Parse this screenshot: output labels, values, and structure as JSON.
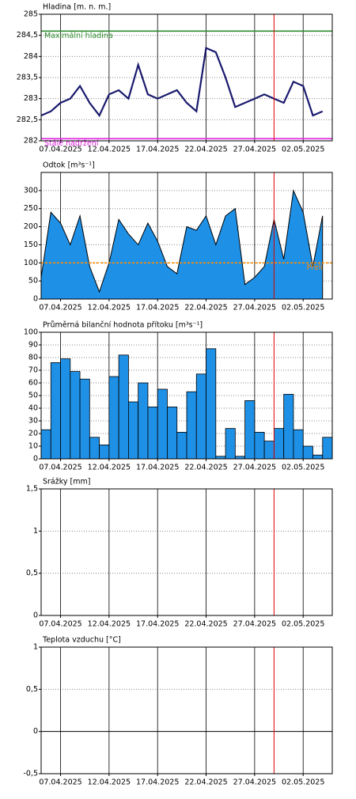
{
  "chart_data": [
    {
      "type": "line",
      "title": "Hladina [m. n. m.]",
      "x": [
        "05.04.2025",
        "06.04.2025",
        "07.04.2025",
        "08.04.2025",
        "09.04.2025",
        "10.04.2025",
        "11.04.2025",
        "12.04.2025",
        "13.04.2025",
        "14.04.2025",
        "15.04.2025",
        "16.04.2025",
        "17.04.2025",
        "18.04.2025",
        "19.04.2025",
        "20.04.2025",
        "21.04.2025",
        "22.04.2025",
        "23.04.2025",
        "24.04.2025",
        "25.04.2025",
        "26.04.2025",
        "27.04.2025",
        "28.04.2025",
        "29.04.2025",
        "30.04.2025",
        "01.05.2025",
        "02.05.2025",
        "03.05.2025",
        "04.05.2025"
      ],
      "series": [
        {
          "color": "#1a1a6e",
          "values": [
            282.6,
            282.7,
            282.9,
            283.0,
            283.3,
            282.9,
            282.6,
            283.1,
            283.2,
            283.0,
            283.8,
            283.1,
            283.0,
            283.1,
            283.2,
            282.9,
            282.7,
            284.2,
            284.1,
            283.5,
            282.8,
            282.9,
            283.0,
            283.1,
            283.0,
            282.9,
            283.4,
            283.3,
            282.6,
            282.7
          ]
        }
      ],
      "references": [
        {
          "label": "Maximální hladina",
          "value": 284.6,
          "color": "#2e8b2e"
        },
        {
          "label": "Stálé nadržení",
          "value": 282.05,
          "color": "#e020e0"
        }
      ],
      "xlim": [
        "05.04.2025",
        "05.05.2025"
      ],
      "xticks": [
        "07.04.2025",
        "12.04.2025",
        "17.04.2025",
        "22.04.2025",
        "27.04.2025",
        "02.05.2025"
      ],
      "ylim": [
        282,
        285
      ],
      "yticks": [
        282,
        {
          "value": 282.5,
          "label": "282,5"
        },
        283,
        {
          "value": 283.5,
          "label": "283,5"
        },
        284,
        {
          "value": 284.5,
          "label": "284,5"
        },
        285
      ],
      "cursor": "29.04.2025",
      "grid": true
    },
    {
      "type": "area",
      "title": "Odtok [m³s⁻¹]",
      "x": [
        "05.04.2025",
        "06.04.2025",
        "07.04.2025",
        "08.04.2025",
        "09.04.2025",
        "10.04.2025",
        "11.04.2025",
        "12.04.2025",
        "13.04.2025",
        "14.04.2025",
        "15.04.2025",
        "16.04.2025",
        "17.04.2025",
        "18.04.2025",
        "19.04.2025",
        "20.04.2025",
        "21.04.2025",
        "22.04.2025",
        "23.04.2025",
        "24.04.2025",
        "25.04.2025",
        "26.04.2025",
        "27.04.2025",
        "28.04.2025",
        "29.04.2025",
        "30.04.2025",
        "01.05.2025",
        "02.05.2025",
        "03.05.2025",
        "04.05.2025"
      ],
      "series": [
        {
          "color": "#1e90e6",
          "values": [
            60,
            240,
            210,
            150,
            230,
            90,
            20,
            100,
            220,
            180,
            150,
            210,
            160,
            90,
            70,
            200,
            190,
            230,
            150,
            230,
            250,
            40,
            60,
            90,
            220,
            110,
            300,
            240,
            90,
            230
          ]
        }
      ],
      "references": [
        {
          "label": "Přeli",
          "value": 100,
          "color": "#ff8c00"
        }
      ],
      "xlim": [
        "05.04.2025",
        "05.05.2025"
      ],
      "xticks": [
        "07.04.2025",
        "12.04.2025",
        "17.04.2025",
        "22.04.2025",
        "27.04.2025",
        "02.05.2025"
      ],
      "ylim": [
        0,
        350
      ],
      "yticks": [
        0,
        50,
        100,
        150,
        200,
        250,
        300
      ],
      "cursor": "29.04.2025",
      "grid": true
    },
    {
      "type": "bar",
      "title": "Průměrná bilanční hodnota přítoku   [m³s⁻¹]",
      "x": [
        "05.04.2025",
        "06.04.2025",
        "07.04.2025",
        "08.04.2025",
        "09.04.2025",
        "10.04.2025",
        "11.04.2025",
        "12.04.2025",
        "13.04.2025",
        "14.04.2025",
        "15.04.2025",
        "16.04.2025",
        "17.04.2025",
        "18.04.2025",
        "19.04.2025",
        "20.04.2025",
        "21.04.2025",
        "22.04.2025",
        "23.04.2025",
        "24.04.2025",
        "25.04.2025",
        "26.04.2025",
        "27.04.2025",
        "28.04.2025",
        "29.04.2025",
        "30.04.2025",
        "01.05.2025",
        "02.05.2025",
        "03.05.2025",
        "04.05.2025"
      ],
      "series": [
        {
          "color": "#1e90e6",
          "values": [
            23,
            76,
            79,
            69,
            63,
            17,
            11,
            65,
            82,
            45,
            60,
            41,
            55,
            41,
            21,
            53,
            67,
            87,
            2,
            24,
            2,
            46,
            21,
            14,
            24,
            51,
            23,
            10,
            3,
            17
          ]
        }
      ],
      "xlim": [
        "05.04.2025",
        "05.05.2025"
      ],
      "xticks": [
        "07.04.2025",
        "12.04.2025",
        "17.04.2025",
        "22.04.2025",
        "27.04.2025",
        "02.05.2025"
      ],
      "ylim": [
        0,
        100
      ],
      "yticks": [
        0,
        10,
        20,
        30,
        40,
        50,
        60,
        70,
        80,
        90,
        100
      ],
      "cursor": "29.04.2025",
      "grid": true
    },
    {
      "type": "bar",
      "title": "Srážky [mm]",
      "series": [],
      "xlim": [
        "05.04.2025",
        "05.05.2025"
      ],
      "xticks": [
        "07.04.2025",
        "12.04.2025",
        "17.04.2025",
        "22.04.2025",
        "27.04.2025",
        "02.05.2025"
      ],
      "ylim": [
        0,
        1.5
      ],
      "yticks": [
        0,
        {
          "value": 0.5,
          "label": "0,5"
        },
        1,
        {
          "value": 1.5,
          "label": "1,5"
        }
      ],
      "cursor": "29.04.2025",
      "grid": true
    },
    {
      "type": "line",
      "title": "Teplota vzduchu [°C]",
      "series": [],
      "xlim": [
        "05.04.2025",
        "05.05.2025"
      ],
      "xticks": [
        "07.04.2025",
        "12.04.2025",
        "17.04.2025",
        "22.04.2025",
        "27.04.2025",
        "02.05.2025"
      ],
      "ylim": [
        -0.5,
        1
      ],
      "yticks": [
        {
          "value": -0.5,
          "label": "-0,5"
        },
        0,
        {
          "value": 0.5,
          "label": "0,5"
        },
        1
      ],
      "cursor": "29.04.2025",
      "grid": true
    }
  ]
}
